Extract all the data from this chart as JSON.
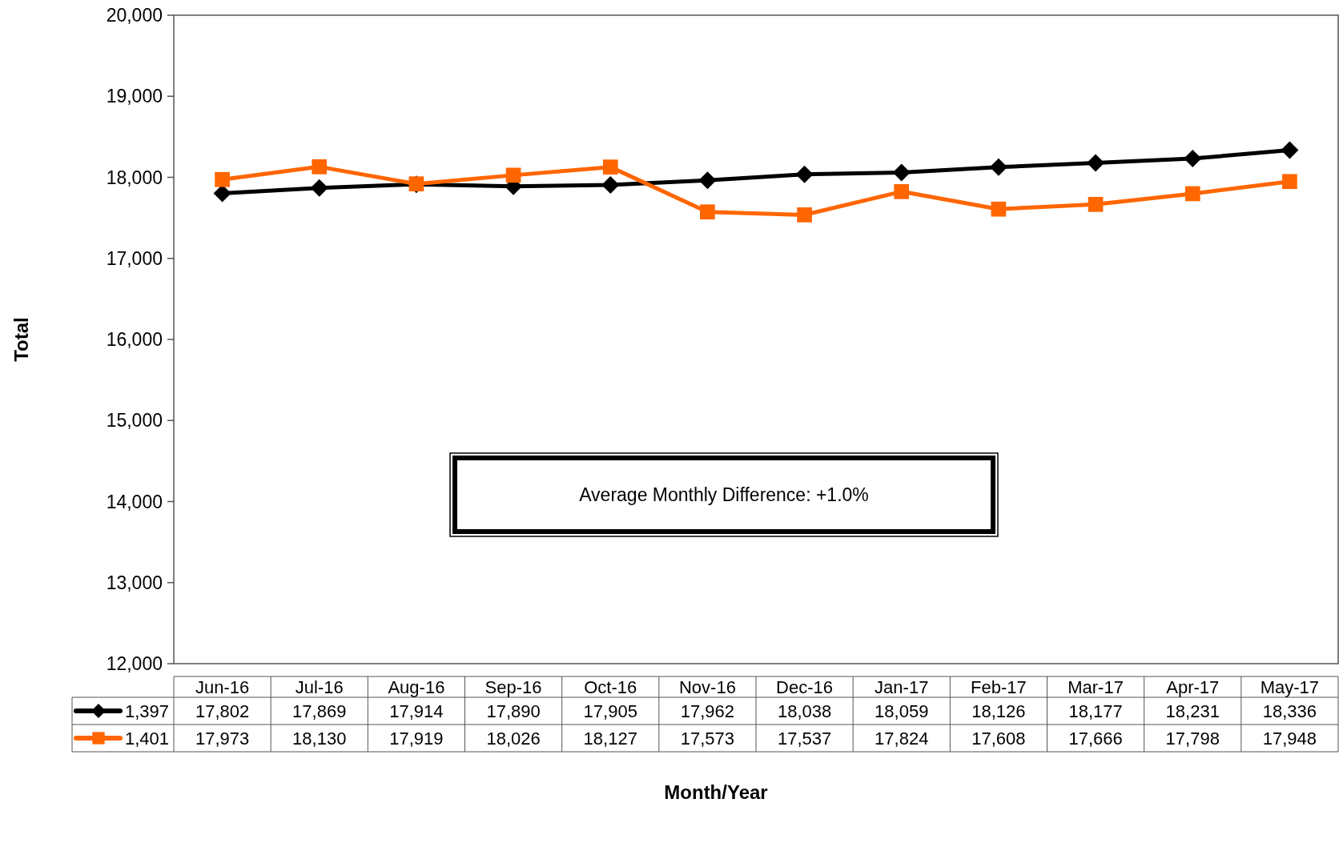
{
  "chart_data": {
    "type": "line",
    "xlabel": "Month/Year",
    "ylabel": "Total",
    "categories": [
      "Jun-16",
      "Jul-16",
      "Aug-16",
      "Sep-16",
      "Oct-16",
      "Nov-16",
      "Dec-16",
      "Jan-17",
      "Feb-17",
      "Mar-17",
      "Apr-17",
      "May-17"
    ],
    "series": [
      {
        "name": "1,397",
        "color": "#000000",
        "marker": "diamond",
        "values": [
          17802,
          17869,
          17914,
          17890,
          17905,
          17962,
          18038,
          18059,
          18126,
          18177,
          18231,
          18336
        ],
        "value_labels": [
          "17,802",
          "17,869",
          "17,914",
          "17,890",
          "17,905",
          "17,962",
          "18,038",
          "18,059",
          "18,126",
          "18,177",
          "18,231",
          "18,336"
        ]
      },
      {
        "name": "1,401",
        "color": "#ff6600",
        "marker": "square",
        "values": [
          17973,
          18130,
          17919,
          18026,
          18127,
          17573,
          17537,
          17824,
          17608,
          17666,
          17798,
          17948
        ],
        "value_labels": [
          "17,973",
          "18,130",
          "17,919",
          "18,026",
          "18,127",
          "17,573",
          "17,537",
          "17,824",
          "17,608",
          "17,666",
          "17,798",
          "17,948"
        ]
      }
    ],
    "ylim": [
      12000,
      20000
    ],
    "yticks": [
      {
        "value": 12000,
        "label": "12,000"
      },
      {
        "value": 13000,
        "label": "13,000"
      },
      {
        "value": 14000,
        "label": "14,000"
      },
      {
        "value": 15000,
        "label": "15,000"
      },
      {
        "value": 16000,
        "label": "16,000"
      },
      {
        "value": 17000,
        "label": "17,000"
      },
      {
        "value": 18000,
        "label": "18,000"
      },
      {
        "value": 19000,
        "label": "19,000"
      },
      {
        "value": 20000,
        "label": "20,000"
      }
    ],
    "annotations": [
      "Average Monthly Difference: +1.0%"
    ],
    "legend": "bottom left",
    "grid": false,
    "line_style": "solid"
  }
}
